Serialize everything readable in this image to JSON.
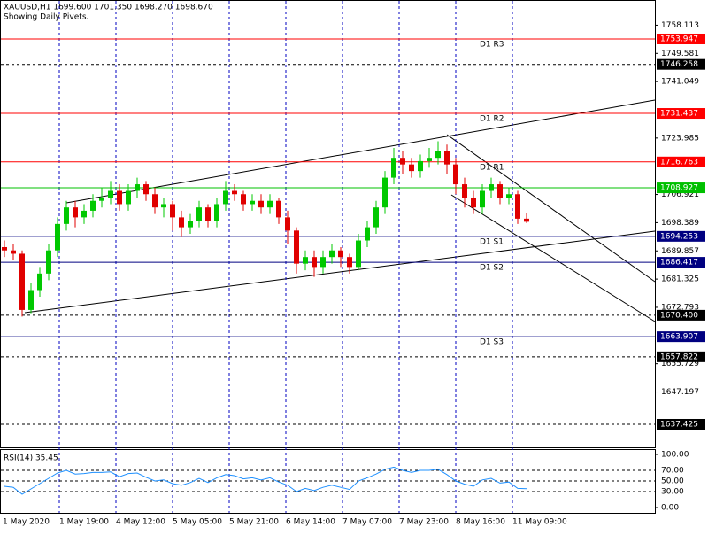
{
  "chart_data": {
    "type": "candlestick",
    "title": "XAUUSD,H1  1699.600 1701.350 1698.270 1698.670",
    "subtitle": "Showing Daily Pivets.",
    "ylim": [
      1630.46,
      1765.73
    ],
    "yticks": [
      1758.113,
      1749.581,
      1741.049,
      1723.985,
      1706.921,
      1698.389,
      1689.857,
      1681.325,
      1672.793,
      1655.729,
      1647.197
    ],
    "grid": true,
    "up_color": "#00c800",
    "down_color": "#e00000",
    "xticks": [
      "1 May 2020",
      "1 May 19:00",
      "4 May 12:00",
      "5 May 05:00",
      "5 May 21:00",
      "6 May 14:00",
      "7 May 07:00",
      "7 May 23:00",
      "8 May 16:00",
      "11 May 09:00"
    ],
    "open": [
      1691,
      1690,
      1689,
      1672,
      1678,
      1683,
      1690,
      1698,
      1703,
      1700,
      1702,
      1705,
      1706,
      1708,
      1704,
      1708,
      1710,
      1707,
      1703,
      1704,
      1700,
      1697,
      1699,
      1703,
      1699,
      1704,
      1708,
      1707,
      1704,
      1705,
      1703,
      1705,
      1700,
      1696,
      1686,
      1688,
      1685,
      1688,
      1690,
      1688,
      1685,
      1693,
      1697,
      1703,
      1712,
      1718,
      1716,
      1714,
      1717,
      1718,
      1720,
      1716,
      1710,
      1706,
      1703,
      1708,
      1710,
      1706,
      1707,
      1699.6
    ],
    "high": [
      1693,
      1692,
      1690,
      1680,
      1685,
      1692,
      1700,
      1705,
      1705,
      1704,
      1707,
      1709,
      1711,
      1710,
      1710,
      1712,
      1711,
      1709,
      1706,
      1705,
      1702,
      1701,
      1705,
      1704,
      1706,
      1711,
      1710,
      1708,
      1707,
      1707,
      1707,
      1706,
      1702,
      1697,
      1690,
      1690,
      1690,
      1692,
      1691,
      1689,
      1695,
      1699,
      1705,
      1714,
      1721,
      1720,
      1718,
      1719,
      1721,
      1723,
      1722,
      1718,
      1712,
      1708,
      1710,
      1712,
      1711,
      1709,
      1708,
      1701.35
    ],
    "low": [
      1688,
      1687,
      1670,
      1671,
      1676,
      1681,
      1688,
      1696,
      1697,
      1698,
      1700,
      1703,
      1704,
      1702,
      1702,
      1706,
      1705,
      1701,
      1700,
      1696,
      1694,
      1695,
      1697,
      1697,
      1697,
      1702,
      1705,
      1702,
      1702,
      1701,
      1701,
      1698,
      1692,
      1683,
      1684,
      1682,
      1683,
      1686,
      1685,
      1683,
      1684,
      1691,
      1695,
      1701,
      1710,
      1713,
      1712,
      1712,
      1715,
      1716,
      1713,
      1707,
      1703,
      1701,
      1701,
      1706,
      1704,
      1704,
      1698,
      1698.27
    ],
    "close": [
      1690,
      1689,
      1672,
      1678,
      1683,
      1690,
      1698,
      1703,
      1700,
      1702,
      1705,
      1706,
      1708,
      1704,
      1708,
      1710,
      1707,
      1703,
      1704,
      1700,
      1697,
      1699,
      1703,
      1699,
      1704,
      1708,
      1707,
      1704,
      1705,
      1703,
      1705,
      1700,
      1696,
      1686,
      1688,
      1685,
      1688,
      1690,
      1688,
      1685,
      1693,
      1697,
      1703,
      1712,
      1718,
      1716,
      1714,
      1717,
      1718,
      1720,
      1716,
      1710,
      1706,
      1703,
      1708,
      1710,
      1706,
      1707,
      1699.6,
      1698.67
    ],
    "levels": [
      {
        "value": 1753.947,
        "label": "1753.947",
        "pivot": "D1 R3",
        "color": "#ff0000",
        "style": "solid"
      },
      {
        "value": 1746.258,
        "label": "1746.258",
        "color": "#000000",
        "style": "dashed"
      },
      {
        "value": 1731.437,
        "label": "1731.437",
        "pivot": "D1 R2",
        "color": "#ff0000",
        "style": "solid"
      },
      {
        "value": 1716.763,
        "label": "1716.763",
        "pivot": "D1 R1",
        "color": "#ff0000",
        "style": "solid"
      },
      {
        "value": 1708.927,
        "label": "1708.927",
        "color": "#00c000",
        "style": "solid"
      },
      {
        "value": 1694.253,
        "label": "1694.253",
        "pivot": "D1 S1",
        "color": "#000080",
        "style": "solid"
      },
      {
        "value": 1686.417,
        "label": "1686.417",
        "pivot": "D1 S2",
        "color": "#000080",
        "style": "solid"
      },
      {
        "value": 1670.4,
        "label": "1670.400",
        "color": "#000000",
        "style": "dashed"
      },
      {
        "value": 1663.907,
        "label": "1663.907",
        "pivot": "D1 S3",
        "color": "#000080",
        "style": "solid"
      },
      {
        "value": 1657.822,
        "label": "1657.822",
        "color": "#000000",
        "style": "dashed"
      },
      {
        "value": 1637.425,
        "label": "1637.425",
        "color": "#000000",
        "style": "dashed"
      }
    ],
    "rsi": {
      "title": "RSI(14) 35.45",
      "color": "#1e90ff",
      "ylim": [
        0,
        100
      ],
      "yticks": [
        {
          "value": 100,
          "label": "100.00"
        },
        {
          "value": 70,
          "label": "70.00"
        },
        {
          "value": 50,
          "label": "50.00"
        },
        {
          "value": 30,
          "label": "30.00"
        },
        {
          "value": 0,
          "label": "0.00"
        }
      ],
      "values": [
        40,
        38,
        25,
        35,
        45,
        55,
        65,
        70,
        63,
        64,
        66,
        66,
        67,
        58,
        64,
        65,
        57,
        50,
        52,
        45,
        42,
        47,
        55,
        47,
        56,
        62,
        60,
        54,
        56,
        52,
        56,
        48,
        42,
        30,
        36,
        32,
        38,
        42,
        38,
        34,
        50,
        56,
        63,
        72,
        76,
        70,
        66,
        70,
        70,
        72,
        62,
        50,
        44,
        40,
        52,
        55,
        46,
        48,
        36,
        35.45
      ]
    }
  }
}
